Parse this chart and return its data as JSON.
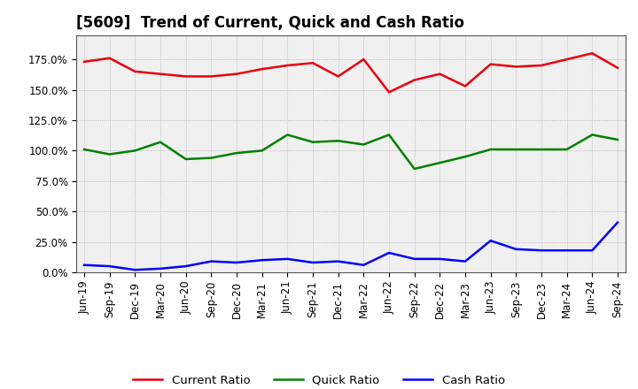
{
  "title": "[5609]  Trend of Current, Quick and Cash Ratio",
  "x_labels": [
    "Jun-19",
    "Sep-19",
    "Dec-19",
    "Mar-20",
    "Jun-20",
    "Sep-20",
    "Dec-20",
    "Mar-21",
    "Jun-21",
    "Sep-21",
    "Dec-21",
    "Mar-22",
    "Jun-22",
    "Sep-22",
    "Dec-22",
    "Mar-23",
    "Jun-23",
    "Sep-23",
    "Dec-23",
    "Mar-24",
    "Jun-24",
    "Sep-24"
  ],
  "current_ratio": [
    173,
    176,
    165,
    163,
    161,
    161,
    163,
    167,
    170,
    172,
    161,
    175,
    148,
    158,
    163,
    153,
    171,
    169,
    170,
    175,
    180,
    168
  ],
  "quick_ratio": [
    101,
    97,
    100,
    107,
    93,
    94,
    98,
    100,
    113,
    107,
    108,
    105,
    113,
    85,
    90,
    95,
    101,
    101,
    101,
    101,
    113,
    109
  ],
  "cash_ratio": [
    6,
    5,
    2,
    3,
    5,
    9,
    8,
    10,
    11,
    8,
    9,
    6,
    16,
    11,
    11,
    9,
    26,
    19,
    18,
    18,
    18,
    41
  ],
  "current_color": "#e8000d",
  "quick_color": "#008000",
  "cash_color": "#0000ff",
  "bg_color": "#f0f0f0",
  "grid_color": "#aaaaaa",
  "ylim": [
    0,
    195
  ],
  "yticks": [
    0,
    25,
    50,
    75,
    100,
    125,
    150,
    175
  ],
  "ytick_labels": [
    "0.0%",
    "25.0%",
    "50.0%",
    "75.0%",
    "100.0%",
    "125.0%",
    "150.0%",
    "175.0%"
  ],
  "legend_labels": [
    "Current Ratio",
    "Quick Ratio",
    "Cash Ratio"
  ],
  "title_fontsize": 12,
  "tick_fontsize": 8.5,
  "legend_fontsize": 9.5
}
